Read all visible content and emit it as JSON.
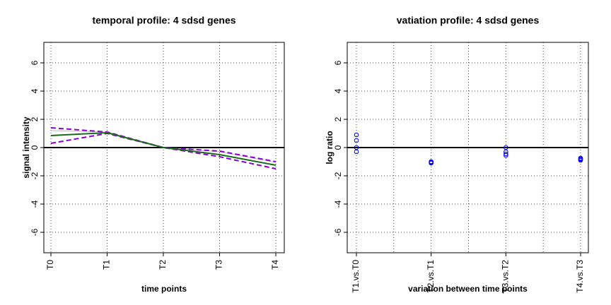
{
  "chart_data": [
    {
      "type": "line",
      "title": "temporal profile: 4 sdsd genes",
      "xlabel": "time points",
      "ylabel": "signal intensity",
      "categories": [
        "T0",
        "T1",
        "T2",
        "T3",
        "T4"
      ],
      "series": [
        {
          "color": "#bbbbbb",
          "dashed": false,
          "width": 1,
          "values": [
            1.2,
            1.1,
            0,
            -0.3,
            -1.05
          ]
        },
        {
          "color": "#8800cc",
          "dashed": true,
          "width": 2,
          "values": [
            1.4,
            1.1,
            0,
            -0.25,
            -1.0
          ]
        },
        {
          "color": "#8800cc",
          "dashed": true,
          "width": 2,
          "values": [
            0.3,
            1.0,
            0,
            -0.65,
            -1.5
          ]
        },
        {
          "color": "#1a6b1a",
          "dashed": false,
          "width": 2,
          "values": [
            0.85,
            1.05,
            0,
            -0.5,
            -1.25
          ]
        }
      ],
      "ylim": [
        -7.45,
        7.45
      ],
      "yticks": [
        -6,
        -4,
        -2,
        0,
        2,
        4,
        6
      ],
      "hline": 0,
      "grid": true,
      "minor_xgrid": false
    },
    {
      "type": "scatter",
      "title": "vatiation profile: 4 sdsd genes",
      "xlabel": "variation between time points",
      "ylabel": "log ratio",
      "categories": [
        "T1.vs.T0",
        "T2.vs.T1",
        "T3.vs.T2",
        "T4.vs.T3"
      ],
      "color": "#0000ff",
      "values": [
        [
          0.9,
          0.5,
          0,
          -0.3
        ],
        [
          -1.0,
          -1.05,
          -1.1,
          -1.0
        ],
        [
          0,
          -0.3,
          -0.45,
          -0.55
        ],
        [
          -0.75,
          -0.8,
          -0.85,
          -0.9
        ]
      ],
      "ylim": [
        -7.45,
        7.45
      ],
      "yticks": [
        -6,
        -4,
        -2,
        0,
        2,
        4,
        6
      ],
      "hline": 0,
      "grid": true,
      "minor_xgrid": true
    }
  ]
}
